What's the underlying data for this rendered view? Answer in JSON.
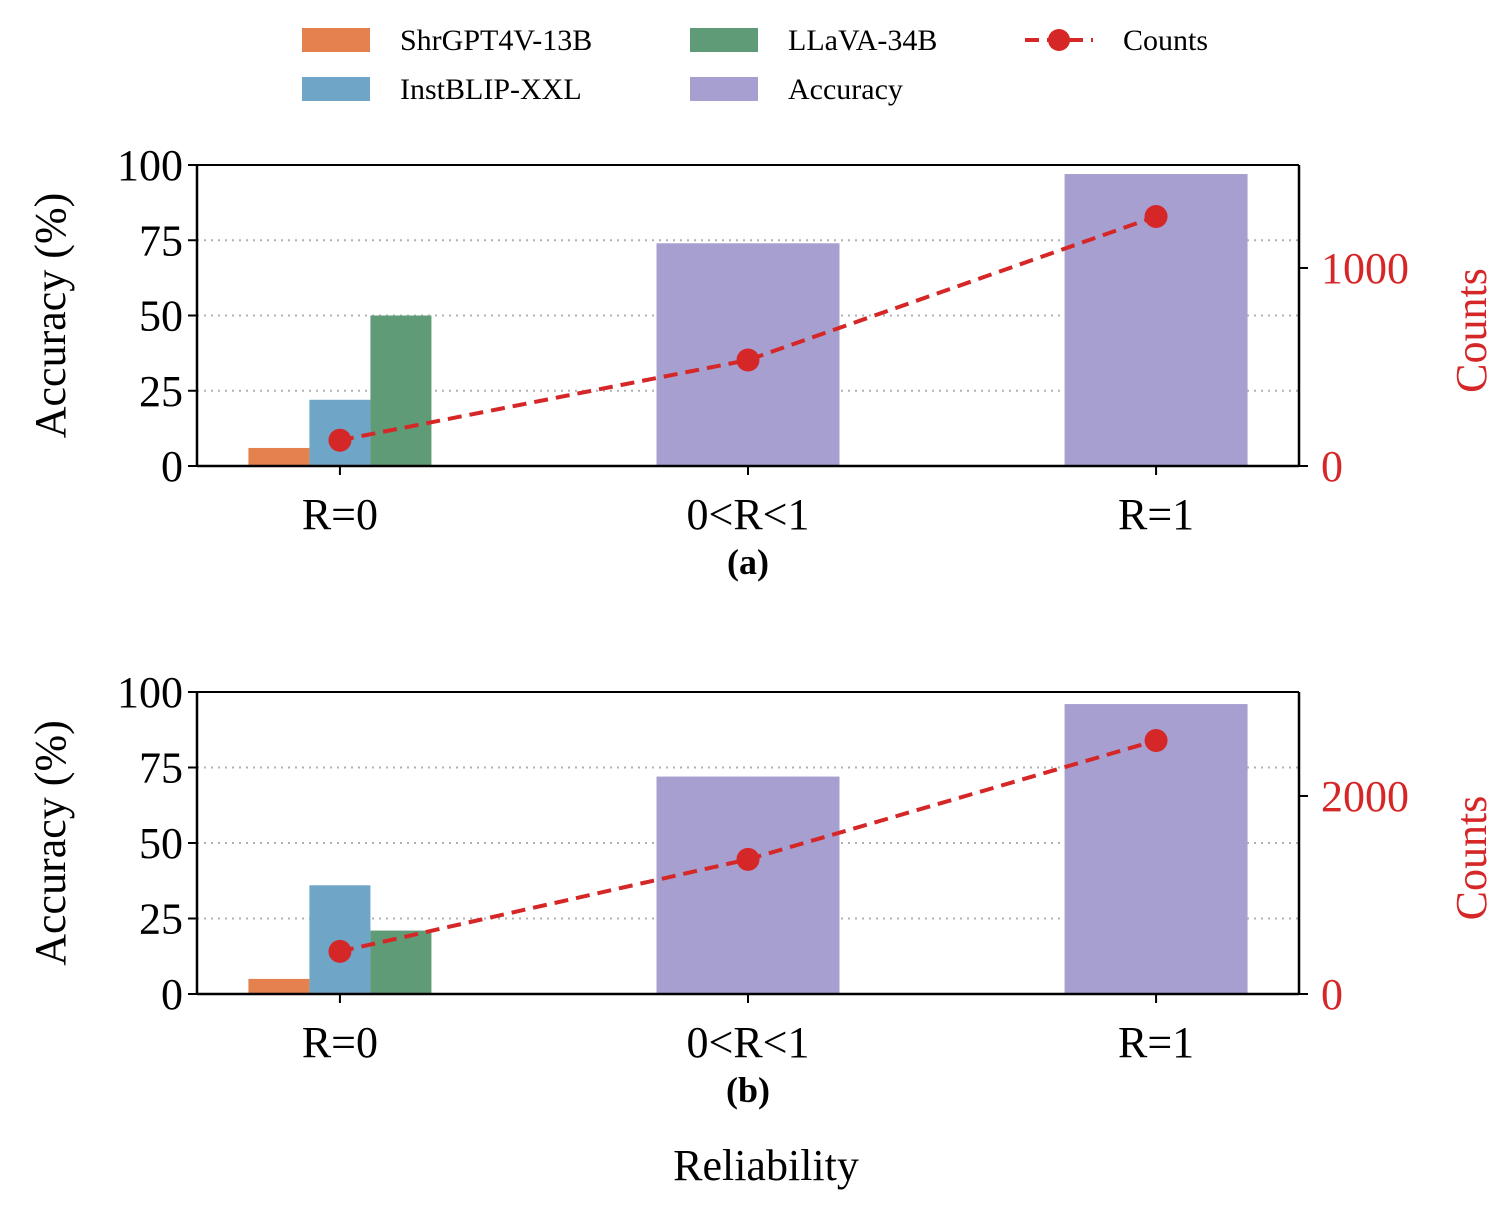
{
  "colors": {
    "ShrGPT4V-13B": "#e5804f",
    "InstBLIP-XXL": "#6fa5c6",
    "LLaVA-34B": "#5e9b76",
    "Accuracy": "#a79fcf",
    "Counts": "#d62728",
    "grid": "#b0b0b0",
    "axis": "#000000"
  },
  "legend": {
    "items": [
      {
        "label": "ShrGPT4V-13B",
        "kind": "bar"
      },
      {
        "label": "LLaVA-34B",
        "kind": "bar"
      },
      {
        "label": "Counts",
        "kind": "line"
      },
      {
        "label": "InstBLIP-XXL",
        "kind": "bar"
      },
      {
        "label": "Accuracy",
        "kind": "bar"
      }
    ]
  },
  "xlabel": "Reliability",
  "chart_data": [
    {
      "type": "bar",
      "panel_label": "(a)",
      "categories": [
        "R=0",
        "0<R<1",
        "R=1"
      ],
      "ylabel": "Accuracy (%)",
      "ylim": [
        0,
        100
      ],
      "yticks": [
        0,
        25,
        50,
        75,
        100
      ],
      "y2label": "Counts",
      "y2lim": [
        0,
        1520
      ],
      "y2ticks": [
        0,
        1000
      ],
      "grid": "horizontal dotted",
      "models_at_R0": [
        {
          "name": "ShrGPT4V-13B",
          "value": 6
        },
        {
          "name": "InstBLIP-XXL",
          "value": 22
        },
        {
          "name": "LLaVA-34B",
          "value": 50
        }
      ],
      "accuracy": {
        "name": "Accuracy",
        "categories": [
          "0<R<1",
          "R=1"
        ],
        "values": [
          74,
          97
        ]
      },
      "counts": {
        "name": "Counts",
        "values": [
          130,
          535,
          1260
        ]
      }
    },
    {
      "type": "bar",
      "panel_label": "(b)",
      "categories": [
        "R=0",
        "0<R<1",
        "R=1"
      ],
      "ylabel": "Accuracy (%)",
      "ylim": [
        0,
        100
      ],
      "yticks": [
        0,
        25,
        50,
        75,
        100
      ],
      "y2label": "Counts",
      "y2lim": [
        0,
        3050
      ],
      "y2ticks": [
        0,
        2000
      ],
      "grid": "horizontal dotted",
      "models_at_R0": [
        {
          "name": "ShrGPT4V-13B",
          "value": 5
        },
        {
          "name": "InstBLIP-XXL",
          "value": 36
        },
        {
          "name": "LLaVA-34B",
          "value": 21
        }
      ],
      "accuracy": {
        "name": "Accuracy",
        "categories": [
          "0<R<1",
          "R=1"
        ],
        "values": [
          72,
          96
        ]
      },
      "counts": {
        "name": "Counts",
        "values": [
          430,
          1360,
          2560
        ]
      }
    }
  ]
}
